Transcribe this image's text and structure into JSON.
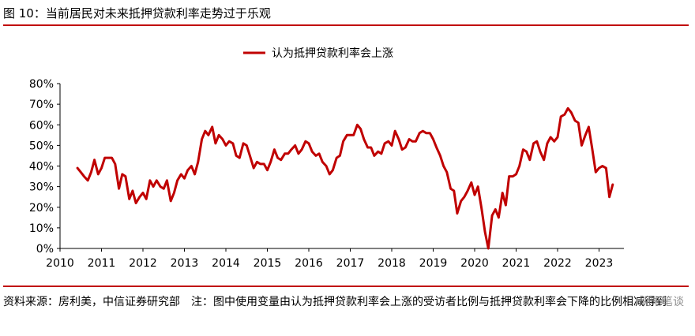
{
  "figure": {
    "title": "图 10：当前居民对未来抵押贷款利率走势过于乐观",
    "source": "资料来源：房利美，中信证券研究部　注：图中使用变量由认为抵押贷款利率会上涨的受访者比例与抵押贷款利率会下降的比例相减得到",
    "watermark": "明晰笔谈"
  },
  "colors": {
    "line": "#c00000",
    "rule": "#c00000",
    "axis": "#000000"
  },
  "chart_data": {
    "type": "line",
    "title": "",
    "xlabel": "",
    "ylabel": "",
    "xlim": [
      2010,
      2023.6
    ],
    "ylim": [
      0,
      80
    ],
    "grid": false,
    "legend": "top-center",
    "x_ticks": [
      2010,
      2011,
      2012,
      2013,
      2014,
      2015,
      2016,
      2017,
      2018,
      2019,
      2020,
      2021,
      2022,
      2023
    ],
    "x_tick_labels": [
      "2010",
      "2011",
      "2012",
      "2013",
      "2014",
      "2015",
      "2016",
      "2017",
      "2018",
      "2019",
      "2020",
      "2021",
      "2022",
      "2023"
    ],
    "y_ticks": [
      0,
      10,
      20,
      30,
      40,
      50,
      60,
      70,
      80
    ],
    "y_tick_labels": [
      "0%",
      "10%",
      "20%",
      "30%",
      "40%",
      "50%",
      "60%",
      "70%",
      "80%"
    ],
    "series": [
      {
        "name": "认为抵押贷款利率会上涨",
        "color": "#c00000",
        "points": [
          [
            2010.42,
            39
          ],
          [
            2010.5,
            37
          ],
          [
            2010.58,
            35
          ],
          [
            2010.67,
            33
          ],
          [
            2010.75,
            37
          ],
          [
            2010.83,
            43
          ],
          [
            2010.92,
            36
          ],
          [
            2011.0,
            39
          ],
          [
            2011.08,
            44
          ],
          [
            2011.17,
            44
          ],
          [
            2011.25,
            44
          ],
          [
            2011.33,
            41
          ],
          [
            2011.42,
            29
          ],
          [
            2011.5,
            36
          ],
          [
            2011.58,
            35
          ],
          [
            2011.67,
            24
          ],
          [
            2011.75,
            28
          ],
          [
            2011.83,
            22
          ],
          [
            2011.92,
            25
          ],
          [
            2012.0,
            27
          ],
          [
            2012.08,
            24
          ],
          [
            2012.17,
            33
          ],
          [
            2012.25,
            30
          ],
          [
            2012.33,
            33
          ],
          [
            2012.42,
            30
          ],
          [
            2012.5,
            29
          ],
          [
            2012.58,
            33
          ],
          [
            2012.67,
            23
          ],
          [
            2012.75,
            27
          ],
          [
            2012.83,
            33
          ],
          [
            2012.92,
            36
          ],
          [
            2013.0,
            34
          ],
          [
            2013.08,
            38
          ],
          [
            2013.17,
            40
          ],
          [
            2013.25,
            36
          ],
          [
            2013.33,
            42
          ],
          [
            2013.42,
            53
          ],
          [
            2013.5,
            57
          ],
          [
            2013.58,
            55
          ],
          [
            2013.67,
            59
          ],
          [
            2013.75,
            51
          ],
          [
            2013.83,
            55
          ],
          [
            2013.92,
            53
          ],
          [
            2014.0,
            50
          ],
          [
            2014.08,
            52
          ],
          [
            2014.17,
            51
          ],
          [
            2014.25,
            45
          ],
          [
            2014.33,
            44
          ],
          [
            2014.42,
            51
          ],
          [
            2014.5,
            50
          ],
          [
            2014.58,
            45
          ],
          [
            2014.67,
            39
          ],
          [
            2014.75,
            42
          ],
          [
            2014.83,
            41
          ],
          [
            2014.92,
            41
          ],
          [
            2015.0,
            38
          ],
          [
            2015.08,
            42
          ],
          [
            2015.17,
            48
          ],
          [
            2015.25,
            44
          ],
          [
            2015.33,
            43
          ],
          [
            2015.42,
            46
          ],
          [
            2015.5,
            46
          ],
          [
            2015.58,
            48
          ],
          [
            2015.67,
            50
          ],
          [
            2015.75,
            46
          ],
          [
            2015.83,
            48
          ],
          [
            2015.92,
            52
          ],
          [
            2016.0,
            51
          ],
          [
            2016.08,
            47
          ],
          [
            2016.17,
            45
          ],
          [
            2016.25,
            46
          ],
          [
            2016.33,
            42
          ],
          [
            2016.42,
            40
          ],
          [
            2016.5,
            36
          ],
          [
            2016.58,
            38
          ],
          [
            2016.67,
            44
          ],
          [
            2016.75,
            45
          ],
          [
            2016.83,
            52
          ],
          [
            2016.92,
            55
          ],
          [
            2017.0,
            55
          ],
          [
            2017.08,
            55
          ],
          [
            2017.17,
            60
          ],
          [
            2017.25,
            58
          ],
          [
            2017.33,
            53
          ],
          [
            2017.42,
            49
          ],
          [
            2017.5,
            49
          ],
          [
            2017.58,
            45
          ],
          [
            2017.67,
            47
          ],
          [
            2017.75,
            46
          ],
          [
            2017.83,
            51
          ],
          [
            2017.92,
            52
          ],
          [
            2018.0,
            50
          ],
          [
            2018.08,
            57
          ],
          [
            2018.17,
            53
          ],
          [
            2018.25,
            48
          ],
          [
            2018.33,
            49
          ],
          [
            2018.42,
            53
          ],
          [
            2018.5,
            52
          ],
          [
            2018.58,
            52
          ],
          [
            2018.67,
            56
          ],
          [
            2018.75,
            57
          ],
          [
            2018.83,
            56
          ],
          [
            2018.92,
            56
          ],
          [
            2019.0,
            53
          ],
          [
            2019.08,
            49
          ],
          [
            2019.17,
            45
          ],
          [
            2019.25,
            40
          ],
          [
            2019.33,
            37
          ],
          [
            2019.42,
            29
          ],
          [
            2019.5,
            28
          ],
          [
            2019.58,
            17
          ],
          [
            2019.67,
            23
          ],
          [
            2019.75,
            25
          ],
          [
            2019.83,
            28
          ],
          [
            2019.92,
            32
          ],
          [
            2020.0,
            26
          ],
          [
            2020.08,
            30
          ],
          [
            2020.17,
            19
          ],
          [
            2020.25,
            8
          ],
          [
            2020.33,
            0
          ],
          [
            2020.42,
            16
          ],
          [
            2020.5,
            19
          ],
          [
            2020.58,
            15
          ],
          [
            2020.67,
            27
          ],
          [
            2020.75,
            21
          ],
          [
            2020.83,
            35
          ],
          [
            2020.92,
            35
          ],
          [
            2021.0,
            36
          ],
          [
            2021.08,
            40
          ],
          [
            2021.17,
            48
          ],
          [
            2021.25,
            47
          ],
          [
            2021.33,
            43
          ],
          [
            2021.42,
            51
          ],
          [
            2021.5,
            52
          ],
          [
            2021.58,
            47
          ],
          [
            2021.67,
            43
          ],
          [
            2021.75,
            51
          ],
          [
            2021.83,
            54
          ],
          [
            2021.92,
            52
          ],
          [
            2022.0,
            54
          ],
          [
            2022.08,
            64
          ],
          [
            2022.17,
            65
          ],
          [
            2022.25,
            68
          ],
          [
            2022.33,
            66
          ],
          [
            2022.42,
            62
          ],
          [
            2022.5,
            61
          ],
          [
            2022.58,
            50
          ],
          [
            2022.67,
            55
          ],
          [
            2022.75,
            59
          ],
          [
            2022.83,
            49
          ],
          [
            2022.92,
            37
          ],
          [
            2023.0,
            39
          ],
          [
            2023.08,
            40
          ],
          [
            2023.17,
            39
          ],
          [
            2023.25,
            25
          ],
          [
            2023.33,
            31
          ]
        ]
      }
    ]
  }
}
